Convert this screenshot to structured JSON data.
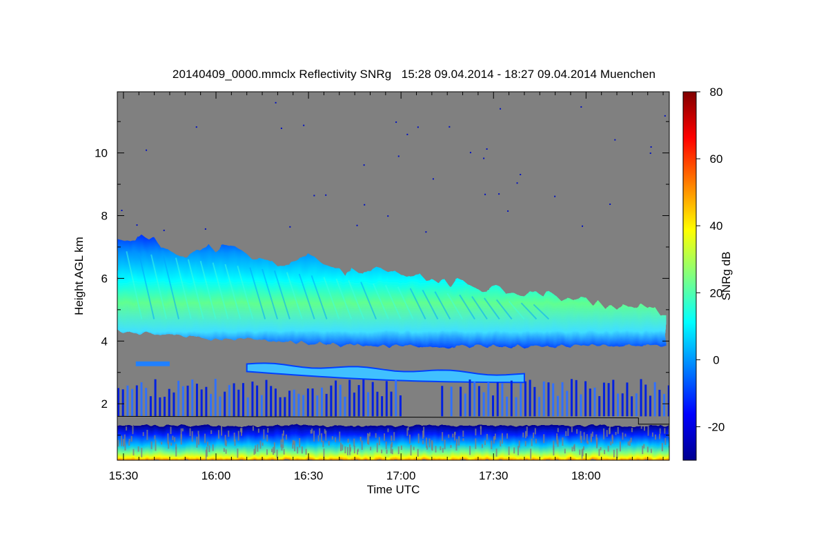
{
  "chart_data": {
    "type": "heatmap",
    "title": "20140409_0000.mmclx Reflectivity SNRg   15:28 09.04.2014 - 18:27 09.04.2014 Muenchen",
    "xlabel": "Time UTC",
    "ylabel": "Height AGL km",
    "colorbar_label": "SNRg dB",
    "x_range": [
      "15:28",
      "18:27"
    ],
    "x_ticks": [
      "15:30",
      "16:00",
      "16:30",
      "17:00",
      "17:30",
      "18:00"
    ],
    "y_range": [
      0.2,
      11.95
    ],
    "y_ticks": [
      2,
      4,
      6,
      8,
      10
    ],
    "colorbar_range": [
      -30,
      80
    ],
    "colorbar_ticks": [
      -20,
      0,
      20,
      40,
      60,
      80
    ],
    "background_color": "#808080",
    "colormap": [
      "#00008f",
      "#0000ff",
      "#0080ff",
      "#00ffff",
      "#80ff80",
      "#ffff00",
      "#ff8000",
      "#ff0000",
      "#800000"
    ],
    "features": [
      {
        "name": "main cloud layer",
        "time_start": "15:28",
        "time_end": "18:27",
        "base_km_start": 4.3,
        "base_km_end": 3.9,
        "top_km_start": 7.2,
        "top_km_end": 4.9,
        "snr_db_min": -25,
        "snr_db_max": 25
      },
      {
        "name": "mid-level layer",
        "time_start": "16:10",
        "time_end": "17:42",
        "base_km": 2.7,
        "top_km": 3.3,
        "snr_db_min": -20,
        "snr_db_max": 10
      },
      {
        "name": "lower layer",
        "time_start": "15:28",
        "time_end": "18:27",
        "base_km": 1.4,
        "top_km": 2.5,
        "snr_db_min": -28,
        "snr_db_max": 5
      },
      {
        "name": "boundary layer clutter",
        "time_start": "15:28",
        "time_end": "18:27",
        "base_km": 0.2,
        "top_km": 1.3,
        "snr_db_min": -25,
        "snr_db_max": 45
      }
    ]
  }
}
